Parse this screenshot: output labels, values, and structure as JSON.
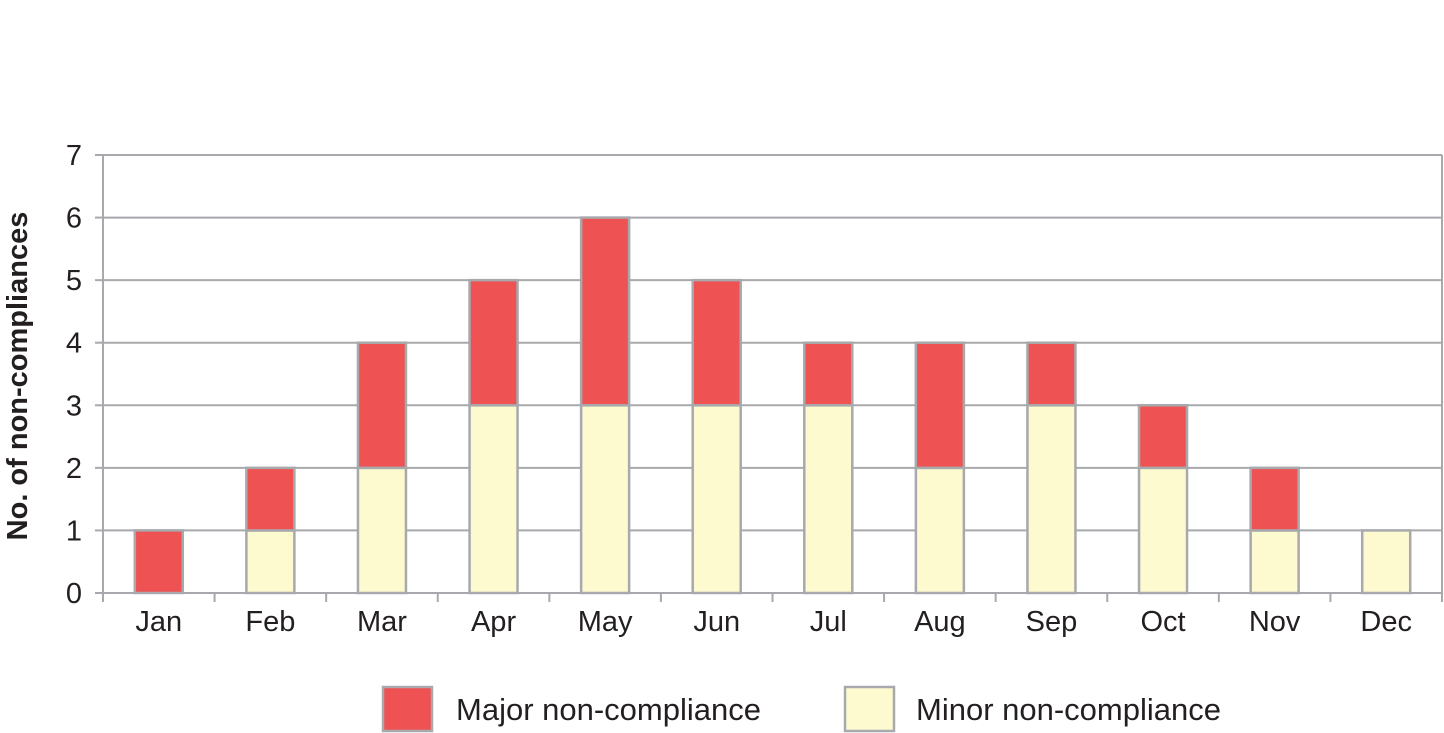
{
  "chart_data": {
    "type": "bar",
    "stacked": true,
    "title": "",
    "xlabel": "",
    "ylabel": "No. of non-compliances",
    "ylim": [
      0,
      7
    ],
    "yticks": [
      0,
      1,
      2,
      3,
      4,
      5,
      6,
      7
    ],
    "grid": true,
    "legend_position": "bottom",
    "categories": [
      "Jan",
      "Feb",
      "Mar",
      "Apr",
      "May",
      "Jun",
      "Jul",
      "Aug",
      "Sep",
      "Oct",
      "Nov",
      "Dec"
    ],
    "series": [
      {
        "name": "Minor non-compliance",
        "color": "#fdfacf",
        "values": [
          0,
          1,
          2,
          3,
          3,
          3,
          3,
          2,
          3,
          2,
          1,
          1
        ]
      },
      {
        "name": "Major non-compliance",
        "color": "#ef5253",
        "values": [
          1,
          1,
          2,
          2,
          3,
          2,
          1,
          2,
          1,
          1,
          1,
          0
        ]
      }
    ],
    "legend": [
      {
        "name": "Major non-compliance",
        "color": "#ef5253"
      },
      {
        "name": "Minor non-compliance",
        "color": "#fdfacf"
      }
    ],
    "colors": {
      "bar_border": "#a7a9ac",
      "grid": "#a7a9ac",
      "text": "#231f20"
    }
  }
}
